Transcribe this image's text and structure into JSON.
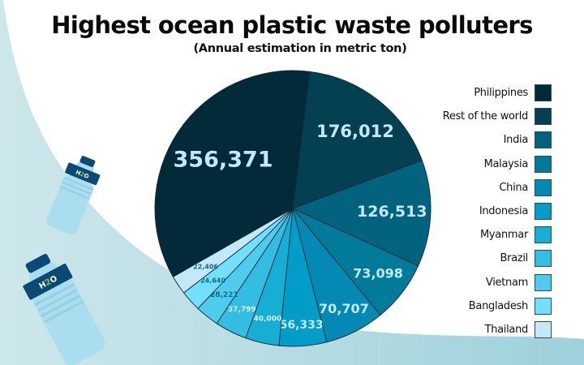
{
  "header": {
    "title": "Highest ocean plastic waste polluters",
    "subtitle": "(Annual estimation in metric ton)"
  },
  "decoration": {
    "bottles": [
      {
        "label": "H2O",
        "name": "small-bottle"
      },
      {
        "label": "H2O",
        "name": "large-bottle"
      }
    ]
  },
  "chart_data": {
    "type": "pie",
    "title": "Highest ocean plastic waste polluters",
    "subtitle": "(Annual estimation in metric ton)",
    "unit": "metric ton",
    "legend_position": "right",
    "categories": [
      "Philippines",
      "Rest of the world",
      "India",
      "Malaysia",
      "China",
      "Indonesia",
      "Myanmar",
      "Brazil",
      "Vietnam",
      "Bangladesh",
      "Thailand"
    ],
    "values": [
      356371,
      176012,
      126513,
      73098,
      70707,
      56333,
      40000,
      37799,
      28221,
      24640,
      22406
    ],
    "labels": [
      "356,371",
      "176,012",
      "126,513",
      "73,098",
      "70,707",
      "56,333",
      "40,000",
      "37,799",
      "28,221",
      "24,640",
      "22,406"
    ],
    "colors": [
      "#032a38",
      "#043f52",
      "#03627e",
      "#027a9a",
      "#0389b3",
      "#009dc8",
      "#17aed6",
      "#33bde3",
      "#4fcbec",
      "#74dffa",
      "#c4e8f8"
    ],
    "label_colors": [
      "#c4e8f8",
      "#c4e8f8",
      "#c4e8f8",
      "#c4e8f8",
      "#c4e8f8",
      "#c4e8f8",
      "#d7f2fc",
      "#d7f2fc",
      "#0a6e8a",
      "#0a6e8a",
      "#0a6e8a"
    ],
    "label_sizes": [
      27,
      21,
      19,
      16,
      16,
      14,
      9,
      9,
      9,
      8,
      8
    ]
  },
  "legend": {
    "items": [
      {
        "label": "Philippines",
        "color": "#032a38"
      },
      {
        "label": "Rest of the world",
        "color": "#043f52"
      },
      {
        "label": "India",
        "color": "#03627e"
      },
      {
        "label": "Malaysia",
        "color": "#027a9a"
      },
      {
        "label": "China",
        "color": "#0389b3"
      },
      {
        "label": "Indonesia",
        "color": "#009dc8"
      },
      {
        "label": "Myanmar",
        "color": "#17aed6"
      },
      {
        "label": "Brazil",
        "color": "#33bde3"
      },
      {
        "label": "Vietnam",
        "color": "#4fcbec"
      },
      {
        "label": "Bangladesh",
        "color": "#74dffa"
      },
      {
        "label": "Thailand",
        "color": "#c4e8f8"
      }
    ]
  }
}
